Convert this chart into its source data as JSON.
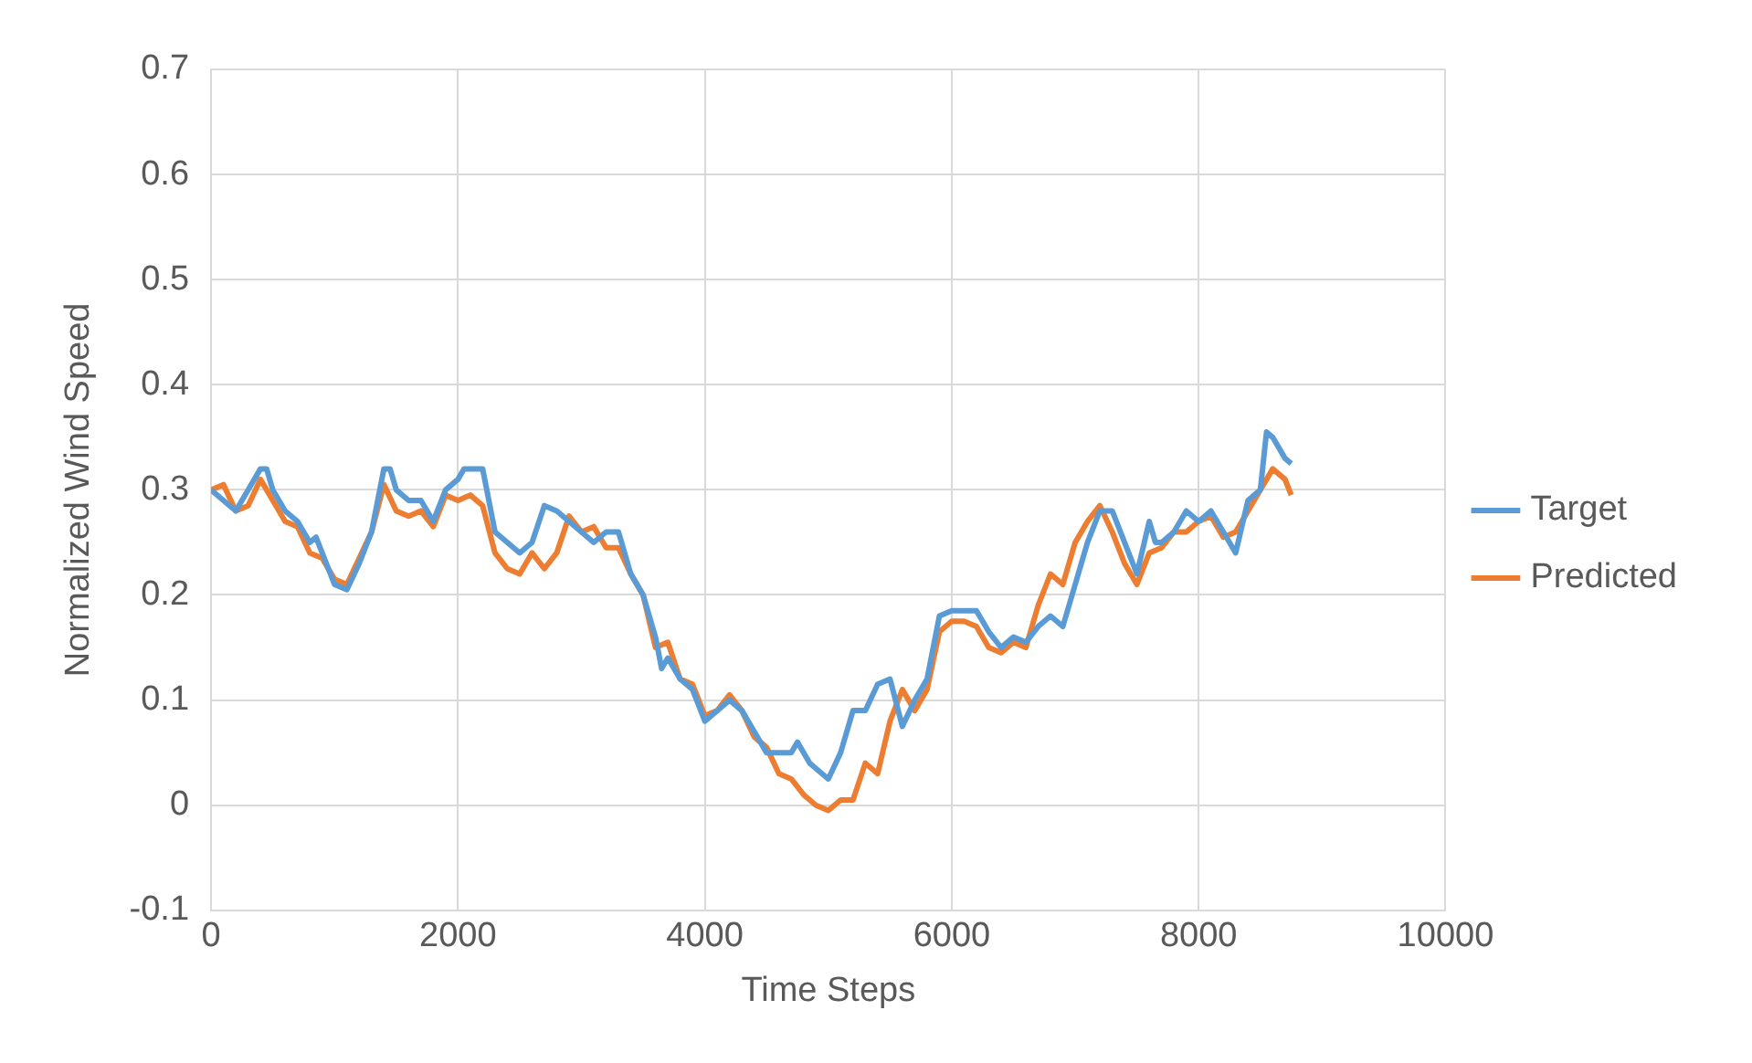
{
  "chart_data": {
    "type": "line",
    "xlabel": "Time Steps",
    "ylabel": "Normalized Wind Speed",
    "xlim": [
      0,
      10000
    ],
    "xticks": [
      0,
      2000,
      4000,
      6000,
      8000,
      10000
    ],
    "ylim": [
      -0.1,
      0.7
    ],
    "yticks": [
      -0.1,
      0,
      0.1,
      0.2,
      0.3,
      0.4,
      0.5,
      0.6,
      0.7
    ],
    "grid": true,
    "legend": "right",
    "marker": "none",
    "line_style": "solid",
    "series": [
      {
        "name": "Target",
        "color": "#5b9bd5",
        "x": [
          0,
          100,
          200,
          300,
          400,
          450,
          500,
          600,
          700,
          800,
          850,
          900,
          1000,
          1100,
          1200,
          1300,
          1400,
          1450,
          1500,
          1600,
          1700,
          1800,
          1900,
          2000,
          2050,
          2200,
          2300,
          2400,
          2500,
          2600,
          2700,
          2800,
          2900,
          3000,
          3100,
          3200,
          3300,
          3400,
          3500,
          3600,
          3650,
          3700,
          3800,
          3900,
          4000,
          4100,
          4200,
          4300,
          4400,
          4500,
          4600,
          4700,
          4750,
          4850,
          5000,
          5100,
          5200,
          5300,
          5400,
          5500,
          5600,
          5700,
          5800,
          5900,
          6000,
          6100,
          6200,
          6300,
          6400,
          6500,
          6600,
          6700,
          6800,
          6900,
          7000,
          7100,
          7200,
          7300,
          7400,
          7500,
          7600,
          7650,
          7700,
          7800,
          7900,
          8000,
          8100,
          8200,
          8300,
          8400,
          8500,
          8550,
          8600,
          8700,
          8750
        ],
        "values": [
          0.3,
          0.29,
          0.28,
          0.3,
          0.32,
          0.32,
          0.3,
          0.28,
          0.27,
          0.25,
          0.255,
          0.24,
          0.21,
          0.205,
          0.23,
          0.26,
          0.32,
          0.32,
          0.3,
          0.29,
          0.29,
          0.27,
          0.3,
          0.31,
          0.32,
          0.32,
          0.26,
          0.25,
          0.24,
          0.25,
          0.285,
          0.28,
          0.27,
          0.26,
          0.25,
          0.26,
          0.26,
          0.22,
          0.2,
          0.16,
          0.13,
          0.14,
          0.12,
          0.11,
          0.08,
          0.09,
          0.1,
          0.09,
          0.07,
          0.05,
          0.05,
          0.05,
          0.06,
          0.04,
          0.025,
          0.05,
          0.09,
          0.09,
          0.115,
          0.12,
          0.075,
          0.1,
          0.12,
          0.18,
          0.185,
          0.185,
          0.185,
          0.165,
          0.15,
          0.16,
          0.155,
          0.17,
          0.18,
          0.17,
          0.21,
          0.25,
          0.28,
          0.28,
          0.25,
          0.22,
          0.27,
          0.25,
          0.25,
          0.26,
          0.28,
          0.27,
          0.28,
          0.26,
          0.24,
          0.29,
          0.3,
          0.355,
          0.35,
          0.33,
          0.325
        ]
      },
      {
        "name": "Predicted",
        "color": "#ed7d31",
        "x": [
          0,
          100,
          200,
          300,
          400,
          500,
          600,
          700,
          800,
          900,
          1000,
          1100,
          1200,
          1300,
          1400,
          1500,
          1600,
          1700,
          1800,
          1900,
          2000,
          2100,
          2200,
          2300,
          2400,
          2500,
          2600,
          2700,
          2800,
          2900,
          3000,
          3100,
          3200,
          3300,
          3400,
          3500,
          3600,
          3700,
          3800,
          3900,
          4000,
          4100,
          4200,
          4300,
          4400,
          4500,
          4600,
          4700,
          4800,
          4900,
          5000,
          5100,
          5200,
          5300,
          5400,
          5500,
          5600,
          5700,
          5800,
          5900,
          6000,
          6100,
          6200,
          6300,
          6400,
          6500,
          6600,
          6700,
          6800,
          6900,
          7000,
          7100,
          7200,
          7300,
          7400,
          7500,
          7600,
          7700,
          7800,
          7900,
          8000,
          8100,
          8200,
          8300,
          8400,
          8500,
          8600,
          8700,
          8750
        ],
        "values": [
          0.3,
          0.305,
          0.28,
          0.285,
          0.31,
          0.29,
          0.27,
          0.265,
          0.24,
          0.235,
          0.215,
          0.21,
          0.235,
          0.26,
          0.305,
          0.28,
          0.275,
          0.28,
          0.265,
          0.295,
          0.29,
          0.295,
          0.285,
          0.24,
          0.225,
          0.22,
          0.24,
          0.225,
          0.24,
          0.275,
          0.26,
          0.265,
          0.245,
          0.245,
          0.22,
          0.2,
          0.15,
          0.155,
          0.12,
          0.115,
          0.085,
          0.09,
          0.105,
          0.09,
          0.065,
          0.055,
          0.03,
          0.025,
          0.01,
          0.0,
          -0.005,
          0.005,
          0.005,
          0.04,
          0.03,
          0.08,
          0.11,
          0.09,
          0.11,
          0.165,
          0.175,
          0.175,
          0.17,
          0.15,
          0.145,
          0.155,
          0.15,
          0.19,
          0.22,
          0.21,
          0.25,
          0.27,
          0.285,
          0.26,
          0.23,
          0.21,
          0.24,
          0.245,
          0.26,
          0.26,
          0.27,
          0.275,
          0.255,
          0.26,
          0.28,
          0.3,
          0.32,
          0.31,
          0.295
        ]
      }
    ]
  }
}
